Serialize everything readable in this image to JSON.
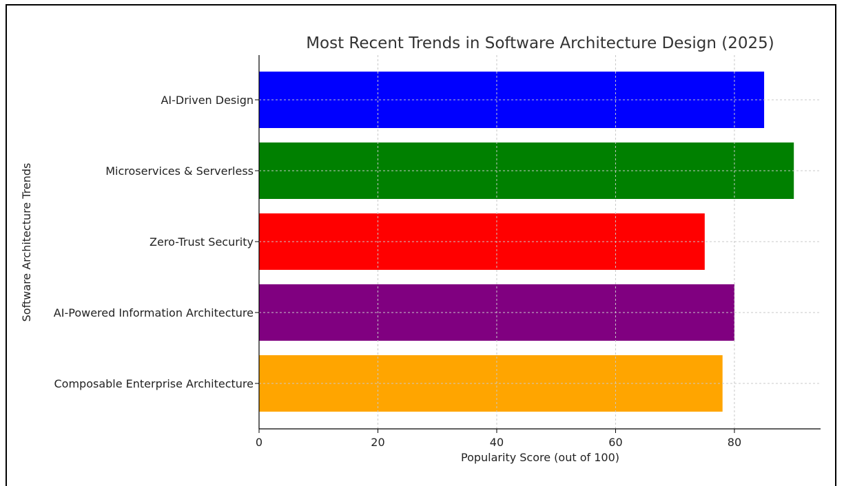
{
  "chart_data": {
    "type": "bar",
    "orientation": "horizontal",
    "title": "Most Recent Trends in Software Architecture Design (2025)",
    "xlabel": "Popularity Score (out of 100)",
    "ylabel": "Software Architecture Trends",
    "categories": [
      "AI-Driven Design",
      "Microservices & Serverless",
      "Zero-Trust Security",
      "AI-Powered Information Architecture",
      "Composable Enterprise Architecture"
    ],
    "values": [
      85,
      90,
      75,
      80,
      78
    ],
    "colors": [
      "#0000ff",
      "#008000",
      "#ff0000",
      "#800080",
      "#ffa500"
    ],
    "xlim": [
      0,
      94.5
    ],
    "xticks": [
      0,
      20,
      40,
      60,
      80
    ],
    "grid": true
  }
}
